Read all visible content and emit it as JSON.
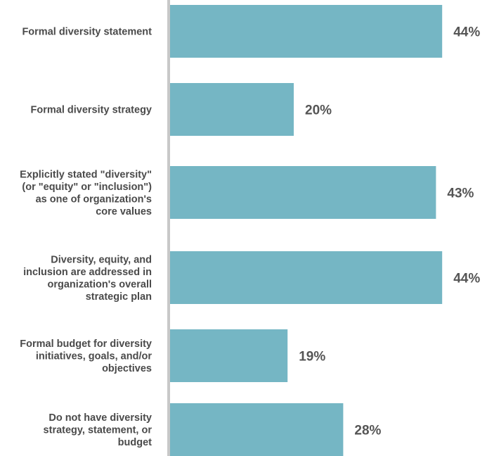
{
  "chart_data": {
    "type": "bar",
    "orientation": "horizontal",
    "categories": [
      "Formal diversity statement",
      "Formal diversity strategy",
      "Explicitly stated \"diversity\" (or \"equity\" or \"inclusion\") as one of organization's core values",
      "Diversity, equity, and inclusion are addressed in organization's overall strategic plan",
      "Formal budget for diversity initiatives, goals, and/or objectives",
      "Do not have diversity strategy, statement, or budget"
    ],
    "category_lines": [
      [
        "Formal diversity statement"
      ],
      [
        "Formal diversity strategy"
      ],
      [
        "Explicitly stated \"diversity\"",
        "(or \"equity\" or \"inclusion\")",
        "as one of organization's",
        "core values"
      ],
      [
        "Diversity, equity, and",
        "inclusion are addressed in",
        "organization's overall",
        "strategic plan"
      ],
      [
        "Formal budget for diversity",
        "initiatives, goals, and/or",
        "objectives"
      ],
      [
        "Do not have diversity",
        "strategy, statement, or",
        "budget"
      ]
    ],
    "values": [
      44,
      20,
      43,
      44,
      19,
      28
    ],
    "value_labels": [
      "44%",
      "20%",
      "43%",
      "44%",
      "19%",
      "28%"
    ],
    "title": "",
    "xlabel": "",
    "ylabel": "",
    "xlim": [
      0,
      100
    ],
    "grid": false,
    "legend": "none",
    "bar_color": "#75b6c4",
    "axis_color": "#c8c8c8",
    "label_color": "#4a4a4a",
    "value_color": "#555555"
  }
}
